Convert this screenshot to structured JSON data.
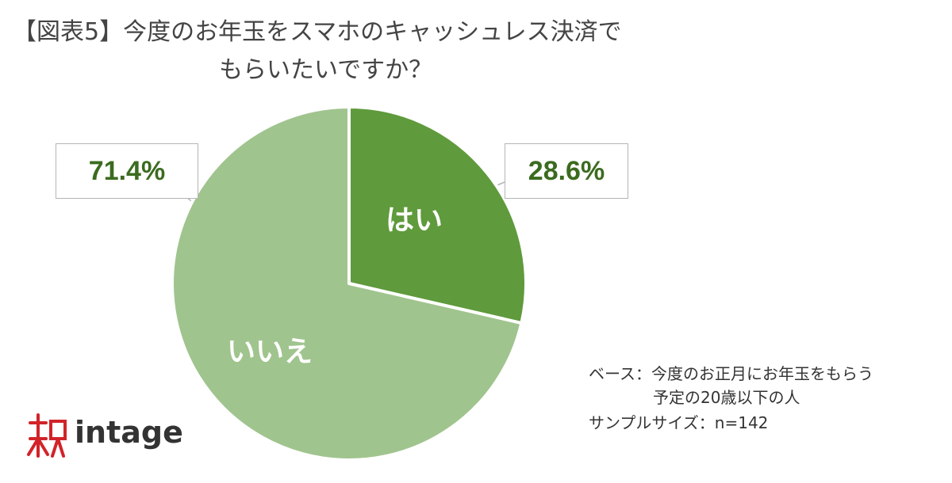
{
  "title": {
    "line1": "【図表5】今度のお年玉をスマホのキャッシュレス決済で",
    "line2": "もらいたいですか？"
  },
  "chart_data": {
    "type": "pie",
    "slices": [
      {
        "label": "はい",
        "value": 28.6,
        "value_label": "28.6%",
        "color": "#5f9a3c"
      },
      {
        "label": "いいえ",
        "value": 71.4,
        "value_label": "71.4%",
        "color": "#a0c48e"
      }
    ],
    "start_angle": "12 o'clock",
    "direction": "clockwise"
  },
  "note": {
    "base_line1": "ベース：今度のお正月にお年玉をもらう",
    "base_line2": "予定の20歳以下の人",
    "sample": "サンプルサイズ：n=142"
  },
  "logo": {
    "text": "intage",
    "color": "#d2232a"
  }
}
